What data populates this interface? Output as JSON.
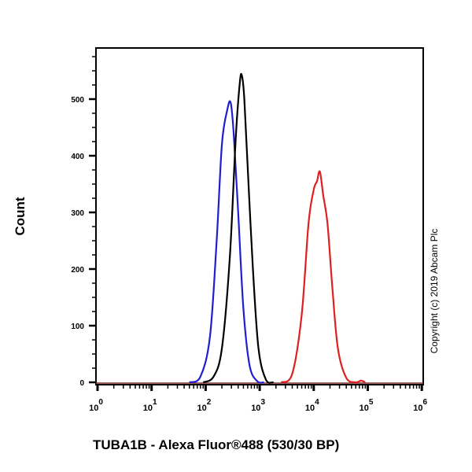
{
  "chart_data": {
    "type": "line",
    "title": "",
    "xlabel": "TUBA1B - Alexa Fluor®488 (530/30 BP)",
    "ylabel": "Count",
    "xscale": "log",
    "xlim": [
      1,
      1000000
    ],
    "ylim": [
      0,
      580
    ],
    "x_ticks": [
      "10^0",
      "10^1",
      "10^2",
      "10^3",
      "10^4",
      "10^5",
      "10^6"
    ],
    "y_ticks": [
      0,
      100,
      200,
      300,
      400,
      500
    ],
    "grid": false,
    "legend": null,
    "annotations": [
      "Copyright (c) 2019 Abcam Plc"
    ],
    "series": [
      {
        "name": "blue",
        "color": "#1f1fd0",
        "peak_x": 290,
        "peak_y": 494,
        "points": [
          [
            50,
            0
          ],
          [
            80,
            10
          ],
          [
            120,
            80
          ],
          [
            160,
            250
          ],
          [
            200,
            420
          ],
          [
            250,
            480
          ],
          [
            290,
            494
          ],
          [
            330,
            440
          ],
          [
            400,
            300
          ],
          [
            500,
            130
          ],
          [
            650,
            30
          ],
          [
            900,
            2
          ],
          [
            1200,
            0
          ]
        ]
      },
      {
        "name": "black",
        "color": "#000000",
        "peak_x": 470,
        "peak_y": 541,
        "points": [
          [
            90,
            0
          ],
          [
            140,
            10
          ],
          [
            200,
            60
          ],
          [
            280,
            220
          ],
          [
            360,
            430
          ],
          [
            430,
            530
          ],
          [
            470,
            541
          ],
          [
            520,
            500
          ],
          [
            600,
            380
          ],
          [
            750,
            200
          ],
          [
            950,
            60
          ],
          [
            1300,
            5
          ],
          [
            1800,
            0
          ]
        ]
      },
      {
        "name": "red",
        "color": "#e02020",
        "peak_x": 13000,
        "peak_y": 372,
        "points": [
          [
            2500,
            0
          ],
          [
            4000,
            15
          ],
          [
            6000,
            120
          ],
          [
            8000,
            280
          ],
          [
            10000,
            340
          ],
          [
            11500,
            355
          ],
          [
            13000,
            372
          ],
          [
            15000,
            330
          ],
          [
            18000,
            280
          ],
          [
            22000,
            170
          ],
          [
            28000,
            60
          ],
          [
            40000,
            8
          ],
          [
            60000,
            0
          ],
          [
            75000,
            3
          ],
          [
            90000,
            0
          ]
        ]
      }
    ]
  }
}
